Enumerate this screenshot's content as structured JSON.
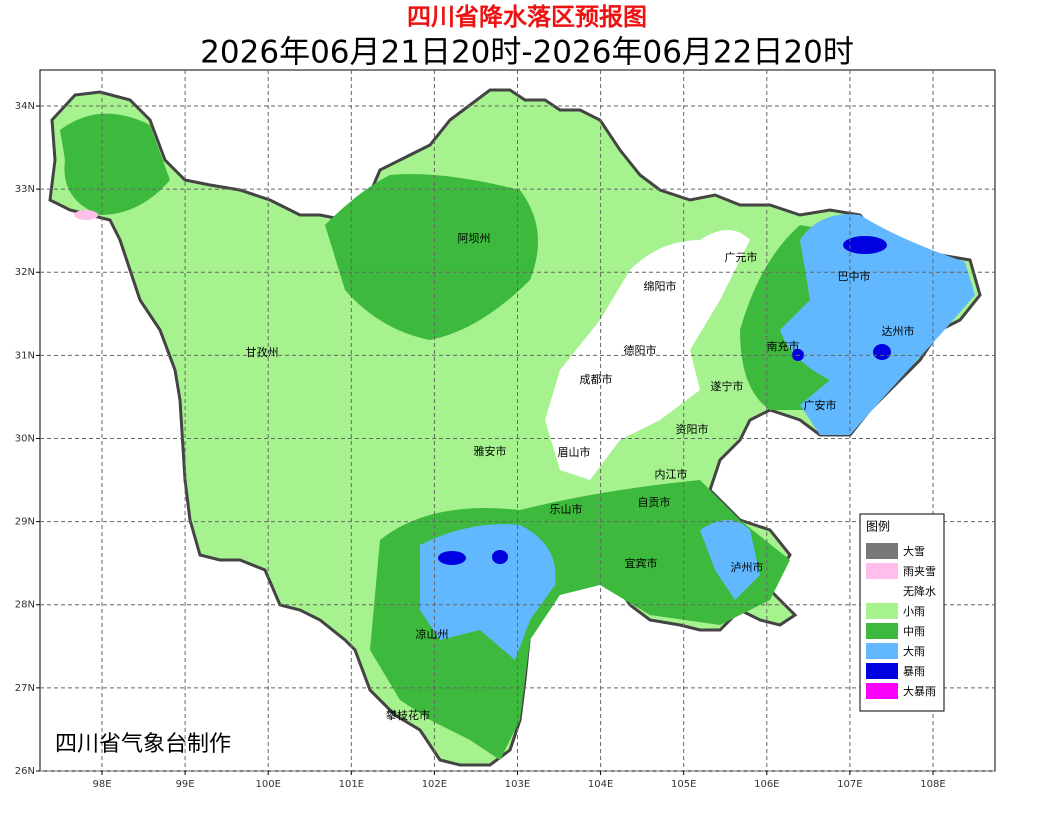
{
  "header": {
    "title": "四川省降水落区预报图",
    "subtitle": "2026年06月21日20时-2026年06月22日20时"
  },
  "map": {
    "xlim": [
      97.254,
      108.746
    ],
    "ylim": [
      26,
      34.433
    ],
    "grid": true,
    "xticks": [
      {
        "value": 98,
        "label": "98E"
      },
      {
        "value": 99,
        "label": "99E"
      },
      {
        "value": 100,
        "label": "100E"
      },
      {
        "value": 101,
        "label": "101E"
      },
      {
        "value": 102,
        "label": "102E"
      },
      {
        "value": 103,
        "label": "103E"
      },
      {
        "value": 104,
        "label": "104E"
      },
      {
        "value": 105,
        "label": "105E"
      },
      {
        "value": 106,
        "label": "106E"
      },
      {
        "value": 107,
        "label": "107E"
      },
      {
        "value": 108,
        "label": "108E"
      }
    ],
    "yticks": [
      {
        "value": 26,
        "label": "26N"
      },
      {
        "value": 27,
        "label": "27N"
      },
      {
        "value": 28,
        "label": "28N"
      },
      {
        "value": 29,
        "label": "29N"
      },
      {
        "value": 30,
        "label": "30N"
      },
      {
        "value": 31,
        "label": "31N"
      },
      {
        "value": 32,
        "label": "32N"
      },
      {
        "value": 33,
        "label": "33N"
      },
      {
        "value": 34,
        "label": "34N"
      }
    ],
    "cities": [
      "阿坝州",
      "广元市",
      "巴中市",
      "绵阳市",
      "达州市",
      "甘孜州",
      "南充市",
      "德阳市",
      "成都市",
      "遂宁市",
      "广安市",
      "资阳市",
      "雅安市",
      "眉山市",
      "内江市",
      "自贡市",
      "乐山市",
      "宜宾市",
      "泸州市",
      "凉山州",
      "攀枝花市"
    ],
    "footer": "四川省气象台制作",
    "legend": {
      "title": "图例",
      "items": [
        {
          "name": "大雪",
          "color": "#777777"
        },
        {
          "name": "雨夹雪",
          "color": "#ffbfea"
        },
        {
          "name": "无降水",
          "color": "#ffffff"
        },
        {
          "name": "小雨",
          "color": "#a6f28f"
        },
        {
          "name": "中雨",
          "color": "#3dba3d"
        },
        {
          "name": "大雨",
          "color": "#61b8ff"
        },
        {
          "name": "暴雨",
          "color": "#0000e1"
        },
        {
          "name": "大暴雨",
          "color": "#fa00fa"
        }
      ]
    }
  }
}
